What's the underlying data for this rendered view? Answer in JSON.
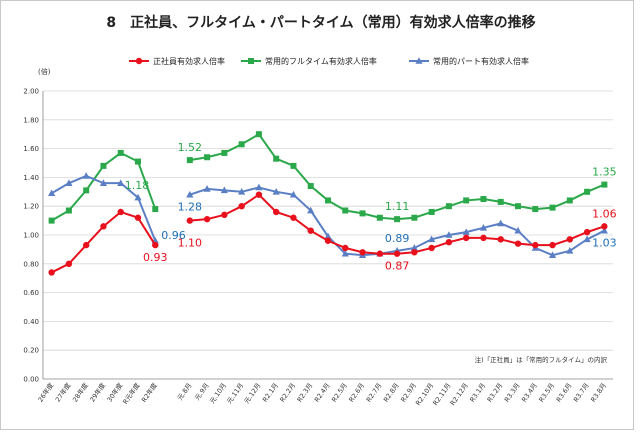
{
  "chart_data": {
    "type": "line",
    "title": "8　正社員、フルタイム・パートタイム（常用）有効求人倍率の推移",
    "y_unit": "(倍)",
    "ylim": [
      0,
      2.0
    ],
    "yticks": [
      "0.00",
      "0.20",
      "0.40",
      "0.60",
      "0.80",
      "1.00",
      "1.20",
      "1.40",
      "1.60",
      "1.80",
      "2.00"
    ],
    "grid": true,
    "legend_position": "top",
    "note": "注)「正社員」は「常用的フルタイム」の内訳",
    "categories_annual": [
      "26年度",
      "27年度",
      "28年度",
      "29年度",
      "30年度",
      "R元年度",
      "R2年度"
    ],
    "categories_monthly": [
      "元.8月",
      "元.9月",
      "元.10月",
      "元.11月",
      "元.12月",
      "R2.1月",
      "R2.2月",
      "R2.3月",
      "R2.4月",
      "R2.5月",
      "R2.6月",
      "R2.7月",
      "R2.8月",
      "R2.9月",
      "R2.10月",
      "R2.11月",
      "R2.12月",
      "R3.1月",
      "R3.2月",
      "R3.3月",
      "R3.4月",
      "R3.5月",
      "R3.6月",
      "R3.7月",
      "R3.8月"
    ],
    "series": [
      {
        "name": "正社員有効求人倍率",
        "color": "#e8101c",
        "marker": "circle",
        "annual": [
          0.74,
          0.8,
          0.93,
          1.06,
          1.16,
          1.12,
          0.93
        ],
        "monthly": [
          1.1,
          1.11,
          1.14,
          1.2,
          1.28,
          1.16,
          1.12,
          1.03,
          0.96,
          0.91,
          0.88,
          0.87,
          0.87,
          0.88,
          0.91,
          0.95,
          0.98,
          0.98,
          0.97,
          0.94,
          0.93,
          0.93,
          0.97,
          1.02,
          1.06
        ],
        "label_color": "#e8101c"
      },
      {
        "name": "常用的フルタイム有効求人倍率",
        "color": "#2aa84a",
        "marker": "square",
        "annual": [
          1.1,
          1.17,
          1.31,
          1.48,
          1.57,
          1.51,
          1.18
        ],
        "monthly": [
          1.52,
          1.54,
          1.57,
          1.63,
          1.7,
          1.53,
          1.48,
          1.34,
          1.24,
          1.17,
          1.15,
          1.12,
          1.11,
          1.12,
          1.16,
          1.2,
          1.24,
          1.25,
          1.23,
          1.2,
          1.18,
          1.19,
          1.24,
          1.3,
          1.35
        ],
        "label_color": "#2aa84a"
      },
      {
        "name": "常用的パート有効求人倍率",
        "color": "#5b7fc4",
        "marker": "triangle",
        "annual": [
          1.29,
          1.36,
          1.41,
          1.36,
          1.36,
          1.26,
          0.96
        ],
        "monthly": [
          1.28,
          1.32,
          1.31,
          1.3,
          1.33,
          1.3,
          1.28,
          1.17,
          0.99,
          0.87,
          0.86,
          0.87,
          0.89,
          0.91,
          0.97,
          1.0,
          1.02,
          1.05,
          1.08,
          1.03,
          0.91,
          0.86,
          0.89,
          0.97,
          1.03
        ],
        "label_color": "#1f6fb5"
      }
    ],
    "data_labels": [
      {
        "text": "1.52",
        "series": 1,
        "part": "monthly",
        "index": 0,
        "pos": "above"
      },
      {
        "text": "1.28",
        "series": 2,
        "part": "monthly",
        "index": 0,
        "pos": "below"
      },
      {
        "text": "1.10",
        "series": 0,
        "part": "monthly",
        "index": 0,
        "pos": "below2"
      },
      {
        "text": "1.18",
        "series": 1,
        "part": "annual",
        "index": 6,
        "pos": "left"
      },
      {
        "text": "0.96",
        "series": 2,
        "part": "annual",
        "index": 6,
        "pos": "right"
      },
      {
        "text": "0.93",
        "series": 0,
        "part": "annual",
        "index": 6,
        "pos": "below"
      },
      {
        "text": "1.11",
        "series": 1,
        "part": "monthly",
        "index": 12,
        "pos": "above"
      },
      {
        "text": "0.89",
        "series": 2,
        "part": "monthly",
        "index": 12,
        "pos": "above"
      },
      {
        "text": "0.87",
        "series": 0,
        "part": "monthly",
        "index": 12,
        "pos": "below"
      },
      {
        "text": "1.35",
        "series": 1,
        "part": "monthly",
        "index": 24,
        "pos": "above"
      },
      {
        "text": "1.06",
        "series": 0,
        "part": "monthly",
        "index": 24,
        "pos": "above"
      },
      {
        "text": "1.03",
        "series": 2,
        "part": "monthly",
        "index": 24,
        "pos": "below"
      }
    ]
  }
}
